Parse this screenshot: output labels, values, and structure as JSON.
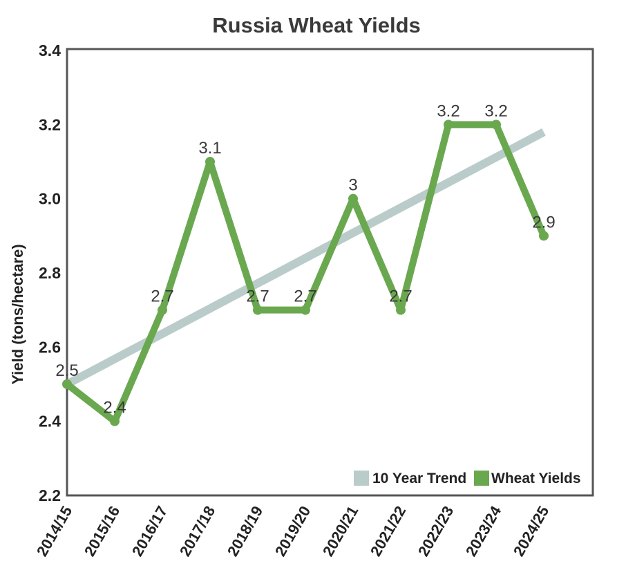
{
  "chart_data": {
    "type": "line",
    "title": "Russia Wheat Yields",
    "ylabel": "Yield (tons/hectare)",
    "xlabel": "",
    "ylim": [
      2.2,
      3.4
    ],
    "yticks": [
      "2.2",
      "2.4",
      "2.6",
      "2.8",
      "3.0",
      "3.2",
      "3.4"
    ],
    "categories": [
      "2014/15",
      "2015/16",
      "2016/17",
      "2017/18",
      "2018/19",
      "2019/20",
      "2020/21",
      "2021/22",
      "2022/23",
      "2023/24",
      "2024/25"
    ],
    "series": [
      {
        "name": "10 Year Trend",
        "color": "#b9ccc9",
        "values": [
          2.5,
          2.569,
          2.638,
          2.707,
          2.776,
          2.845,
          2.914,
          2.983,
          3.052,
          3.121,
          3.18
        ]
      },
      {
        "name": "Wheat Yields",
        "color": "#6aa84f",
        "values": [
          2.5,
          2.4,
          2.7,
          3.1,
          2.7,
          2.7,
          3.0,
          2.7,
          3.2,
          3.2,
          2.9
        ],
        "data_labels": [
          "2.5",
          "2.4",
          "2.7",
          "3.1",
          "2.7",
          "2.7",
          "3",
          "2.7",
          "3.2",
          "3.2",
          "2.9"
        ]
      }
    ],
    "grid": false,
    "legend": "bottom-right"
  }
}
